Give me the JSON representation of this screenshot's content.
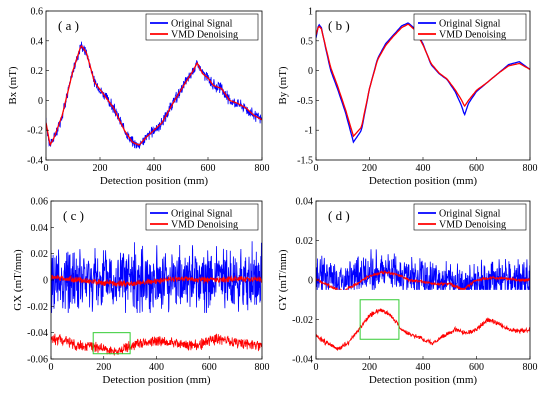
{
  "chart_data": [
    {
      "type": "line",
      "panel_label": "( a )",
      "xlabel": "Detection position (mm)",
      "ylabel": "Bx (mT)",
      "xlim": [
        0,
        800
      ],
      "ylim": [
        -0.4,
        0.6
      ],
      "xticks": [
        "0",
        "200",
        "400",
        "600",
        "800"
      ],
      "yticks": [
        "-0.4",
        "-0.2",
        "0",
        "0.2",
        "0.4",
        "0.6"
      ],
      "legend_position": "top-right",
      "grid": false,
      "series": [
        {
          "name": "Original Signal",
          "color": "#0000ff",
          "noise": 0.045,
          "x": [
            0,
            15,
            30,
            60,
            100,
            130,
            150,
            180,
            210,
            250,
            290,
            320,
            345,
            370,
            400,
            430,
            470,
            510,
            545,
            560,
            580,
            600,
            620,
            650,
            680,
            710,
            740,
            770,
            800
          ],
          "y": [
            -0.15,
            -0.3,
            -0.25,
            -0.1,
            0.2,
            0.37,
            0.32,
            0.12,
            0.05,
            -0.05,
            -0.2,
            -0.28,
            -0.3,
            -0.25,
            -0.2,
            -0.15,
            -0.02,
            0.1,
            0.2,
            0.25,
            0.18,
            0.15,
            0.1,
            0.08,
            0.0,
            -0.02,
            -0.05,
            -0.1,
            -0.13
          ]
        },
        {
          "name": "VMD Denoising",
          "color": "#ff0000",
          "noise": 0.0,
          "x": [
            0,
            15,
            30,
            60,
            100,
            130,
            150,
            180,
            210,
            250,
            290,
            320,
            345,
            370,
            400,
            430,
            470,
            510,
            545,
            560,
            580,
            600,
            620,
            650,
            680,
            710,
            740,
            770,
            800
          ],
          "y": [
            -0.15,
            -0.3,
            -0.25,
            -0.1,
            0.2,
            0.37,
            0.32,
            0.12,
            0.05,
            -0.05,
            -0.2,
            -0.28,
            -0.3,
            -0.25,
            -0.2,
            -0.15,
            -0.02,
            0.1,
            0.2,
            0.25,
            0.18,
            0.15,
            0.1,
            0.08,
            0.0,
            -0.02,
            -0.05,
            -0.1,
            -0.13
          ]
        }
      ]
    },
    {
      "type": "line",
      "panel_label": "( b )",
      "xlabel": "Detection position (mm)",
      "ylabel": "By (mT)",
      "xlim": [
        0,
        800
      ],
      "ylim": [
        -1.5,
        1.0
      ],
      "xticks": [
        "0",
        "200",
        "400",
        "600",
        "800"
      ],
      "yticks": [
        "-1.5",
        "-1",
        "-0.5",
        "0",
        "0.5",
        "1"
      ],
      "legend_position": "top-right",
      "grid": false,
      "series": [
        {
          "name": "Original Signal",
          "color": "#0000ff",
          "noise": 0.0,
          "x": [
            0,
            10,
            20,
            35,
            55,
            80,
            110,
            140,
            170,
            200,
            230,
            260,
            290,
            320,
            345,
            370,
            400,
            430,
            460,
            490,
            520,
            545,
            555,
            570,
            600,
            640,
            680,
            720,
            760,
            800
          ],
          "y": [
            0.55,
            0.78,
            0.72,
            0.4,
            0.0,
            -0.3,
            -0.7,
            -1.2,
            -1.0,
            -0.3,
            0.2,
            0.45,
            0.6,
            0.75,
            0.8,
            0.7,
            0.45,
            0.1,
            -0.05,
            -0.15,
            -0.35,
            -0.6,
            -0.75,
            -0.55,
            -0.35,
            -0.2,
            -0.05,
            0.1,
            0.15,
            0.02
          ]
        },
        {
          "name": "VMD Denoising",
          "color": "#ff0000",
          "noise": 0.0,
          "x": [
            0,
            10,
            20,
            35,
            55,
            80,
            110,
            140,
            170,
            200,
            230,
            260,
            290,
            320,
            345,
            370,
            400,
            430,
            460,
            490,
            520,
            545,
            555,
            570,
            600,
            640,
            680,
            720,
            760,
            800
          ],
          "y": [
            0.6,
            0.75,
            0.7,
            0.42,
            0.05,
            -0.25,
            -0.65,
            -1.1,
            -0.95,
            -0.3,
            0.18,
            0.42,
            0.58,
            0.72,
            0.78,
            0.68,
            0.43,
            0.12,
            -0.04,
            -0.14,
            -0.32,
            -0.5,
            -0.6,
            -0.5,
            -0.33,
            -0.2,
            -0.05,
            0.08,
            0.12,
            0.02
          ]
        }
      ]
    },
    {
      "type": "line",
      "panel_label": "( c )",
      "xlabel": "Detection position (mm)",
      "ylabel": "GX (mT/mm)",
      "xlim": [
        0,
        800
      ],
      "ylim": [
        -0.06,
        0.06
      ],
      "xticks": [
        "0",
        "200",
        "400",
        "600",
        "800"
      ],
      "yticks": [
        "-0.06",
        "-0.04",
        "-0.02",
        "0",
        "0.02",
        "0.04",
        "0.06"
      ],
      "legend_position": "top-right",
      "grid": false,
      "series": [
        {
          "name": "Original Signal",
          "color": "#0000ff",
          "noise": 0.03,
          "x": [
            0,
            400,
            800
          ],
          "y": [
            0.0,
            0.0,
            0.0
          ]
        },
        {
          "name": "VMD Denoising",
          "color": "#ff0000",
          "noise": 0.003,
          "x": [
            0,
            100,
            200,
            300,
            400,
            500,
            600,
            700,
            800
          ],
          "y": [
            0.002,
            0.0,
            -0.002,
            -0.003,
            -0.001,
            0.001,
            0.0,
            0.001,
            0.0
          ]
        }
      ],
      "inset": {
        "color": "#ff0000",
        "noise": 0.005,
        "x": [
          0,
          50,
          100,
          150,
          200,
          250,
          300,
          350,
          400,
          450,
          500,
          550,
          600,
          650,
          700,
          750,
          800
        ],
        "y": [
          -0.044,
          -0.046,
          -0.05,
          -0.051,
          -0.052,
          -0.055,
          -0.05,
          -0.048,
          -0.046,
          -0.047,
          -0.049,
          -0.05,
          -0.046,
          -0.045,
          -0.047,
          -0.049,
          -0.05
        ],
        "box": {
          "x0": 160,
          "x1": 300,
          "y0": -0.04,
          "y1": -0.056,
          "color": "#33cc33"
        }
      }
    },
    {
      "type": "line",
      "panel_label": "( d )",
      "xlabel": "Detection position (mm)",
      "ylabel": "GY (mT/mm)",
      "xlim": [
        0,
        800
      ],
      "ylim": [
        -0.04,
        0.04
      ],
      "xticks": [
        "0",
        "200",
        "400",
        "600",
        "800"
      ],
      "yticks": [
        "-0.04",
        "-0.02",
        "0",
        "0.02",
        "0.04"
      ],
      "legend_position": "top-right",
      "grid": false,
      "series": [
        {
          "name": "Original Signal",
          "color": "#0000ff",
          "noise": 0.012,
          "x": [
            0,
            100,
            200,
            250,
            300,
            350,
            400,
            500,
            550,
            600,
            700,
            800
          ],
          "y": [
            0.003,
            0.0,
            0.004,
            0.006,
            0.004,
            0.002,
            0.0,
            0.0,
            -0.003,
            0.0,
            0.001,
            0.0
          ]
        },
        {
          "name": "VMD Denoising",
          "color": "#ff0000",
          "noise": 0.001,
          "x": [
            0,
            50,
            100,
            150,
            200,
            250,
            300,
            350,
            400,
            450,
            500,
            550,
            600,
            650,
            700,
            750,
            800
          ],
          "y": [
            0.0,
            -0.003,
            -0.006,
            -0.002,
            0.002,
            0.004,
            0.003,
            0.0,
            -0.001,
            -0.002,
            -0.002,
            -0.005,
            0.0,
            0.001,
            0.001,
            0.0,
            0.0
          ]
        }
      ],
      "inset": {
        "color": "#ff0000",
        "noise": 0.0015,
        "x": [
          0,
          40,
          80,
          120,
          160,
          200,
          240,
          280,
          320,
          360,
          400,
          440,
          480,
          520,
          560,
          600,
          640,
          680,
          720,
          760,
          800
        ],
        "y": [
          -0.028,
          -0.032,
          -0.035,
          -0.032,
          -0.025,
          -0.018,
          -0.015,
          -0.018,
          -0.025,
          -0.028,
          -0.03,
          -0.032,
          -0.028,
          -0.025,
          -0.027,
          -0.025,
          -0.02,
          -0.022,
          -0.025,
          -0.026,
          -0.025
        ],
        "box": {
          "x0": 165,
          "x1": 310,
          "y0": -0.01,
          "y1": -0.03,
          "color": "#33cc33"
        }
      }
    }
  ]
}
